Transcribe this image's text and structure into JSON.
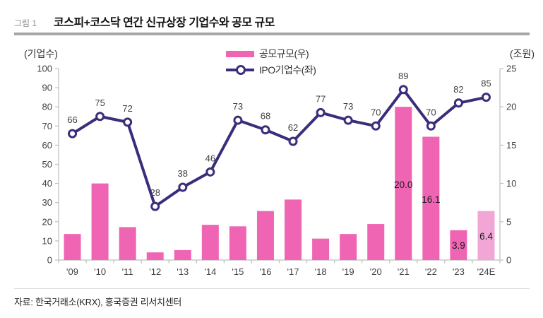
{
  "figure": {
    "tag": "그림 1",
    "title": "코스피+코스닥 연간 신규상장 기업수와 공모 규모",
    "source": "자료: 한국거래소(KRX), 흥국증권 리서치센터"
  },
  "chart_data": {
    "type": "combo (bar + line, dual axis)",
    "title": "코스피+코스닥 연간 신규상장 기업수와 공모 규모",
    "categories": [
      "'09",
      "'10",
      "'11",
      "'12",
      "'13",
      "'14",
      "'15",
      "'16",
      "'17",
      "'18",
      "'19",
      "'20",
      "'21",
      "'22",
      "'23",
      "'24E"
    ],
    "series": [
      {
        "name": "공모규모(우)",
        "type": "bar",
        "axis": "right",
        "color": "#F064B4",
        "estimate_color": "#F2A6D6",
        "estimate_category": "'24E",
        "values": [
          3.4,
          10.0,
          4.3,
          1.0,
          1.3,
          4.6,
          4.4,
          6.4,
          7.9,
          2.8,
          3.4,
          4.7,
          20.0,
          16.1,
          3.9,
          6.4
        ],
        "value_labels": [
          {
            "category": "'21",
            "text": "20.0"
          },
          {
            "category": "'22",
            "text": "16.1"
          },
          {
            "category": "'23",
            "text": "3.9"
          },
          {
            "category": "'24E",
            "text": "6.4"
          }
        ]
      },
      {
        "name": "IPO기업수(좌)",
        "type": "line",
        "axis": "left",
        "color": "#3B2D7C",
        "marker": "open-circle",
        "values": [
          66,
          75,
          72,
          28,
          38,
          46,
          73,
          68,
          62,
          77,
          73,
          70,
          89,
          70,
          82,
          85
        ],
        "show_labels": true
      }
    ],
    "left_axis": {
      "label": "(기업수)",
      "min": 0,
      "max": 100,
      "step": 10
    },
    "right_axis": {
      "label": "(조원)",
      "min": 0,
      "max": 25,
      "step": 5
    },
    "legend_position": "top-center",
    "grid": false,
    "axis_color": "#BFBFBF",
    "tick_label_color": "#404040"
  }
}
